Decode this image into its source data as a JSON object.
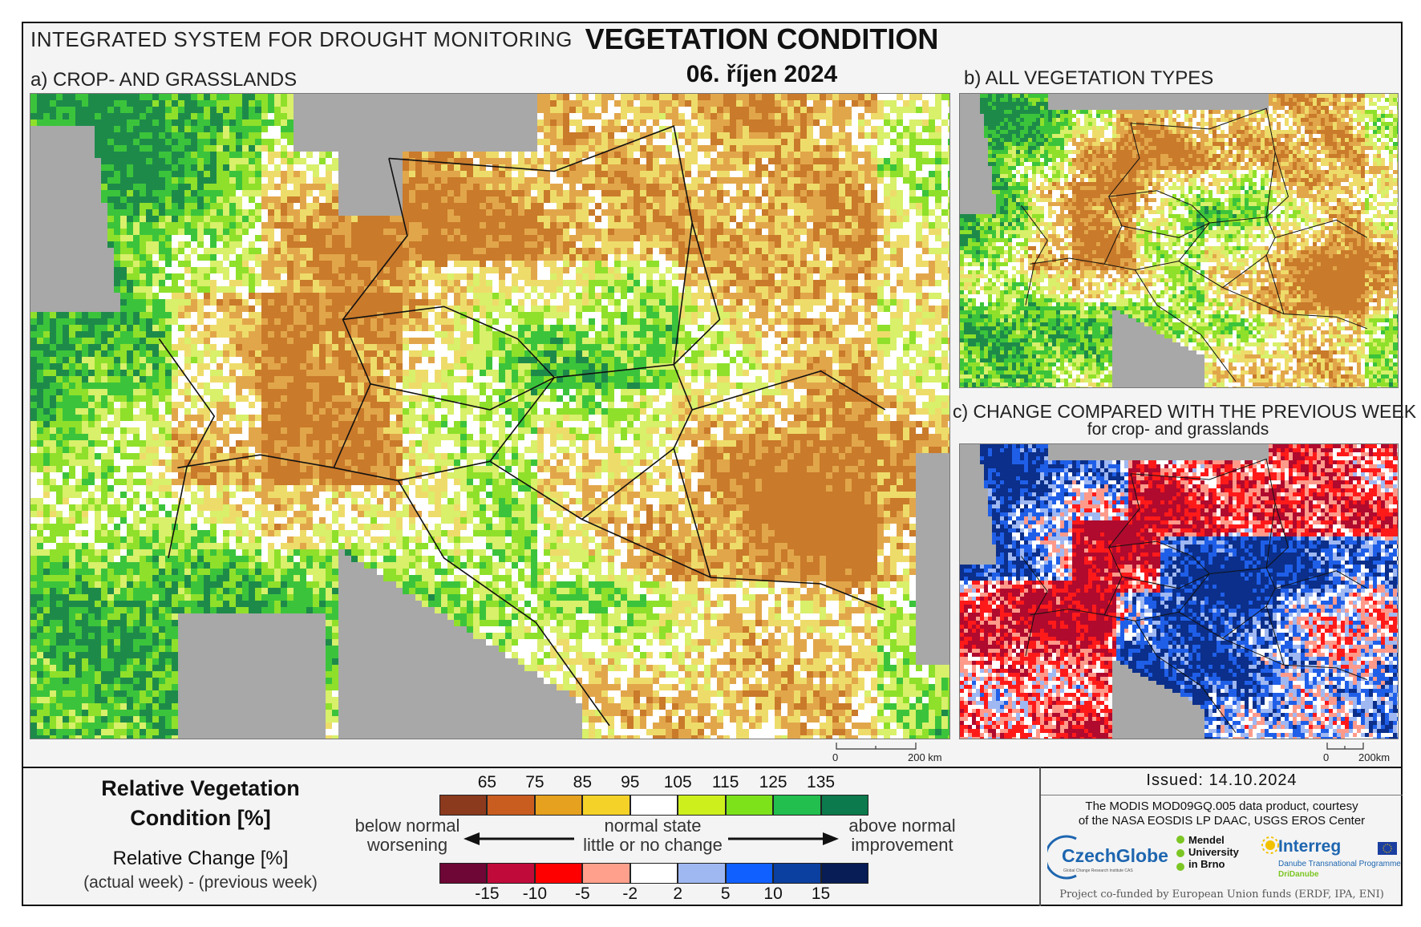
{
  "header": {
    "system_name": "INTEGRATED SYSTEM FOR DROUGHT MONITORING",
    "title": "VEGETATION CONDITION",
    "date": "06. říjen 2024"
  },
  "panels": {
    "a_label": "a) CROP- AND GRASSLANDS",
    "b_label": "b) ALL VEGETATION TYPES",
    "c_label": "c) CHANGE COMPARED WITH THE PREVIOUS WEEK",
    "c_sublabel": "for crop- and grasslands",
    "scale_a": {
      "zero": "0",
      "end": "200 km"
    },
    "scale_b": {
      "zero": "0",
      "end": "200km"
    }
  },
  "legend": {
    "condition_title_1": "Relative Vegetation",
    "condition_title_2": "Condition [%]",
    "change_title": "Relative Change [%]",
    "change_sub": "(actual week) - (previous week)",
    "condition_ticks": [
      "65",
      "75",
      "85",
      "95",
      "105",
      "115",
      "125",
      "135"
    ],
    "condition_colors": [
      "#8b3a1d",
      "#c95d20",
      "#e6a11f",
      "#f5d228",
      "#ffffff",
      "#cdf01c",
      "#7ee21b",
      "#22bf4f",
      "#0c7a4c"
    ],
    "change_ticks": [
      "-15",
      "-10",
      "-5",
      "-2",
      "2",
      "5",
      "10",
      "15"
    ],
    "change_colors": [
      "#6e0736",
      "#c00a3a",
      "#ff0000",
      "#ffa08c",
      "#ffffff",
      "#9fb8f2",
      "#1060ff",
      "#0b3fa0",
      "#081c55"
    ],
    "left_text_1": "below normal",
    "left_text_2": "worsening",
    "mid_text_1": "normal state",
    "mid_text_2": "little or no change",
    "right_text_1": "above normal",
    "right_text_2": "improvement"
  },
  "footer": {
    "issued": "Issued: 14.10.2024",
    "credit_1": "The MODIS MOD09GQ.005 data product, courtesy",
    "credit_2": "of the NASA EOSDIS LP DAAC, USGS EROS Center",
    "logo_czechglobe": "CzechGlobe",
    "logo_czechglobe_sub": "Global Change Research Institute CAS",
    "logo_mendel": "Mendel University in Brno",
    "logo_interreg": "Interreg",
    "logo_interreg_sub1": "Danube Transnational Programme",
    "logo_interreg_sub2": "DriDanube",
    "cofund": "Project co-funded by European Union funds (ERDF, IPA, ENI)"
  }
}
